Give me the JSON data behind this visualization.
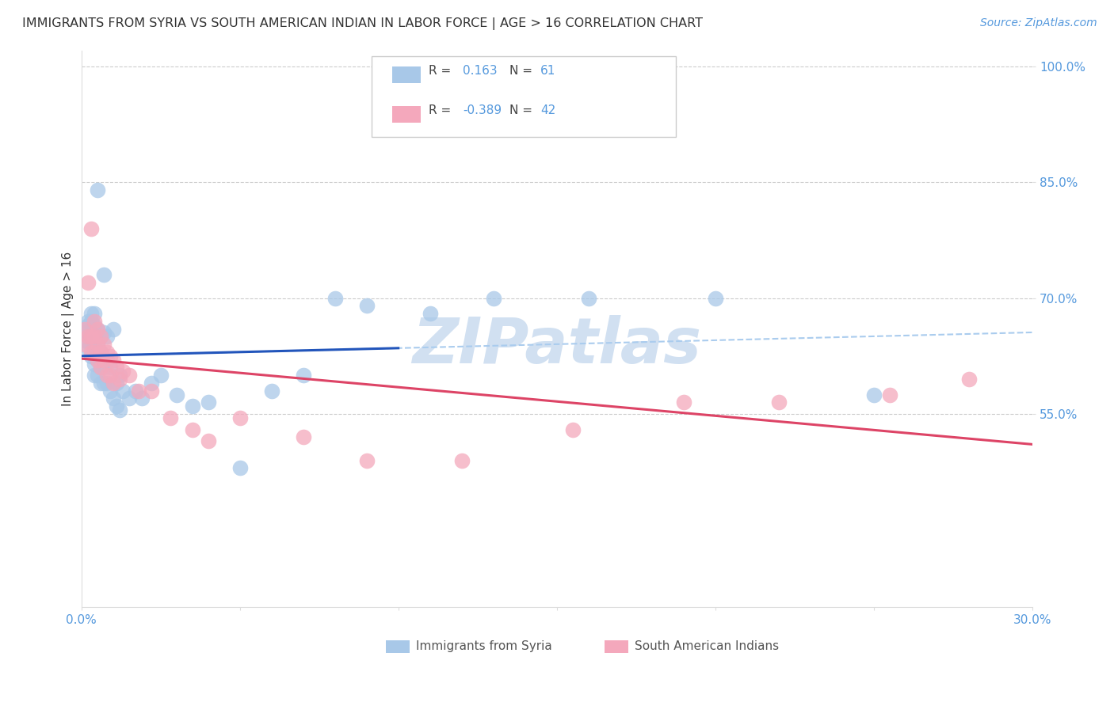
{
  "title": "IMMIGRANTS FROM SYRIA VS SOUTH AMERICAN INDIAN IN LABOR FORCE | AGE > 16 CORRELATION CHART",
  "source": "Source: ZipAtlas.com",
  "ylabel": "In Labor Force | Age > 16",
  "xlim": [
    0.0,
    0.3
  ],
  "ylim": [
    0.3,
    1.02
  ],
  "ytick_vals": [
    0.55,
    0.7,
    0.85,
    1.0
  ],
  "ytick_labels": [
    "55.0%",
    "70.0%",
    "85.0%",
    "100.0%"
  ],
  "xtick_vals": [
    0.0,
    0.05,
    0.1,
    0.15,
    0.2,
    0.25,
    0.3
  ],
  "xtick_labels": [
    "0.0%",
    "",
    "",
    "",
    "",
    "",
    "30.0%"
  ],
  "color_syria": "#a8c8e8",
  "color_sai": "#f4a8bc",
  "color_syria_line": "#2255bb",
  "color_sai_line": "#dd4466",
  "color_dashed": "#aaccee",
  "watermark_text": "ZIPatlas",
  "watermark_color": "#ccddf0",
  "background_color": "#ffffff",
  "grid_color": "#cccccc",
  "title_color": "#333333",
  "axis_tick_color": "#5599dd",
  "source_color": "#5599dd",
  "legend_label1": "Immigrants from Syria",
  "legend_label2": "South American Indians",
  "R1": "0.163",
  "N1": "61",
  "R2": "-0.389",
  "N2": "42",
  "syria_x": [
    0.001,
    0.001,
    0.002,
    0.002,
    0.002,
    0.002,
    0.003,
    0.003,
    0.003,
    0.003,
    0.003,
    0.003,
    0.004,
    0.004,
    0.004,
    0.004,
    0.004,
    0.004,
    0.005,
    0.005,
    0.005,
    0.005,
    0.005,
    0.006,
    0.006,
    0.006,
    0.006,
    0.007,
    0.007,
    0.007,
    0.007,
    0.008,
    0.008,
    0.008,
    0.009,
    0.009,
    0.01,
    0.01,
    0.011,
    0.011,
    0.012,
    0.012,
    0.013,
    0.015,
    0.017,
    0.019,
    0.022,
    0.025,
    0.03,
    0.035,
    0.04,
    0.05,
    0.06,
    0.07,
    0.08,
    0.09,
    0.11,
    0.13,
    0.16,
    0.2,
    0.25
  ],
  "syria_y": [
    0.645,
    0.655,
    0.635,
    0.65,
    0.665,
    0.67,
    0.625,
    0.64,
    0.65,
    0.66,
    0.67,
    0.68,
    0.6,
    0.615,
    0.635,
    0.65,
    0.665,
    0.68,
    0.6,
    0.62,
    0.64,
    0.66,
    0.84,
    0.59,
    0.61,
    0.63,
    0.65,
    0.59,
    0.61,
    0.655,
    0.73,
    0.59,
    0.62,
    0.65,
    0.58,
    0.61,
    0.57,
    0.66,
    0.56,
    0.59,
    0.555,
    0.6,
    0.58,
    0.57,
    0.58,
    0.57,
    0.59,
    0.6,
    0.575,
    0.56,
    0.565,
    0.48,
    0.58,
    0.6,
    0.7,
    0.69,
    0.68,
    0.7,
    0.7,
    0.7,
    0.575
  ],
  "sai_x": [
    0.001,
    0.001,
    0.002,
    0.002,
    0.003,
    0.003,
    0.003,
    0.004,
    0.004,
    0.004,
    0.005,
    0.005,
    0.005,
    0.006,
    0.006,
    0.006,
    0.007,
    0.007,
    0.008,
    0.008,
    0.009,
    0.009,
    0.01,
    0.01,
    0.011,
    0.012,
    0.013,
    0.015,
    0.018,
    0.022,
    0.028,
    0.035,
    0.04,
    0.05,
    0.07,
    0.09,
    0.12,
    0.155,
    0.19,
    0.22,
    0.255,
    0.28
  ],
  "sai_y": [
    0.64,
    0.66,
    0.65,
    0.72,
    0.63,
    0.65,
    0.79,
    0.63,
    0.65,
    0.67,
    0.62,
    0.64,
    0.66,
    0.61,
    0.63,
    0.65,
    0.62,
    0.64,
    0.6,
    0.63,
    0.6,
    0.625,
    0.59,
    0.62,
    0.61,
    0.595,
    0.605,
    0.6,
    0.58,
    0.58,
    0.545,
    0.53,
    0.515,
    0.545,
    0.52,
    0.49,
    0.49,
    0.53,
    0.565,
    0.565,
    0.575,
    0.595
  ]
}
